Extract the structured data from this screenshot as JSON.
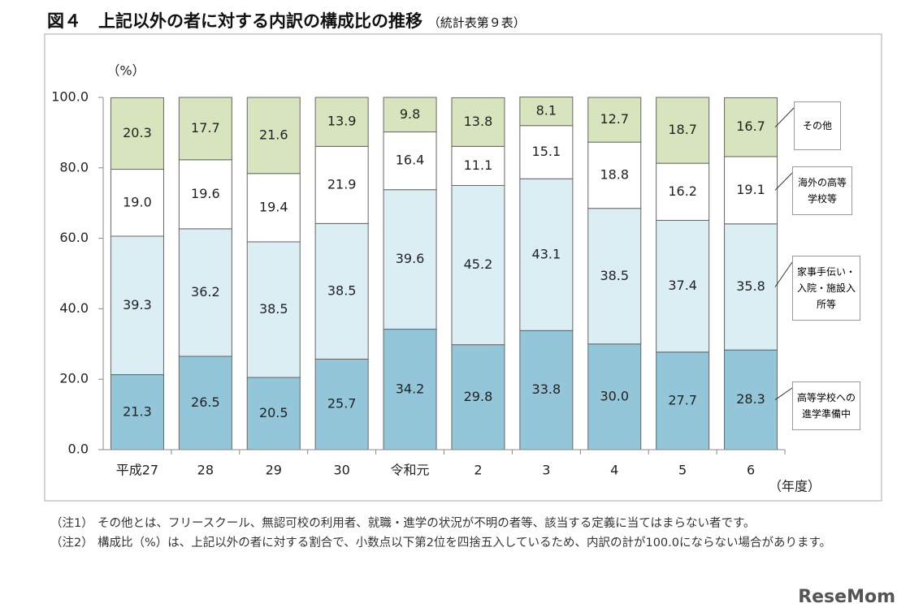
{
  "chart_data": {
    "type": "bar",
    "stacked": true,
    "title": "図４　上記以外の者に対する内訳の構成比の推移",
    "subtitle": "（統計表第９表）",
    "y_unit": "（%）",
    "x_unit": "（年度）",
    "categories": [
      "平成27",
      "28",
      "29",
      "30",
      "令和元",
      "2",
      "3",
      "4",
      "5",
      "6"
    ],
    "ylim": [
      0,
      100
    ],
    "yticks": [
      {
        "value": 0,
        "label": "0.0"
      },
      {
        "value": 20,
        "label": "20.0"
      },
      {
        "value": 40,
        "label": "40.0"
      },
      {
        "value": 60,
        "label": "60.0"
      },
      {
        "value": 80,
        "label": "80.0"
      },
      {
        "value": 100,
        "label": "100.0"
      }
    ],
    "grid": false,
    "series": [
      {
        "name": "高等学校への進学準備中",
        "color": "#92c6d8",
        "values": [
          21.3,
          26.5,
          20.5,
          25.7,
          34.2,
          29.8,
          33.8,
          30.0,
          27.7,
          28.3
        ],
        "value_labels": [
          "21.3",
          "26.5",
          "20.5",
          "25.7",
          "34.2",
          "29.8",
          "33.8",
          "30.0",
          "27.7",
          "28.3"
        ]
      },
      {
        "name": "家事手伝い・入院・施設入所等",
        "color": "#dbeef4",
        "values": [
          39.3,
          36.2,
          38.5,
          38.5,
          39.6,
          45.2,
          43.1,
          38.5,
          37.4,
          35.8
        ],
        "value_labels": [
          "39.3",
          "36.2",
          "38.5",
          "38.5",
          "39.6",
          "45.2",
          "43.1",
          "38.5",
          "37.4",
          "35.8"
        ]
      },
      {
        "name": "海外の高等学校等",
        "color": "#ffffff",
        "values": [
          19.0,
          19.6,
          19.4,
          21.9,
          16.4,
          11.1,
          15.1,
          18.8,
          16.2,
          19.1
        ],
        "value_labels": [
          "19.0",
          "19.6",
          "19.4",
          "21.9",
          "16.4",
          "11.1",
          "15.1",
          "18.8",
          "16.2",
          "19.1"
        ]
      },
      {
        "name": "その他",
        "color": "#d7e4bd",
        "values": [
          20.3,
          17.7,
          21.6,
          13.9,
          9.8,
          13.8,
          8.1,
          12.7,
          18.7,
          16.7
        ],
        "value_labels": [
          "20.3",
          "17.7",
          "21.6",
          "13.9",
          "9.8",
          "13.8",
          "8.1",
          "12.7",
          "18.7",
          "16.7"
        ]
      }
    ]
  },
  "notes": [
    {
      "label": "（注1）",
      "text": "その他とは、フリースクール、無認可校の利用者、就職・進学の状況が不明の者等、該当する定義に当てはまらない者です。"
    },
    {
      "label": "（注2）",
      "text": "構成比（%）は、上記以外の者に対する割合で、小数点以下第2位を四捨五入しているため、内訳の計が100.0にならない場合があります。"
    }
  ],
  "watermark": "ReseMom"
}
